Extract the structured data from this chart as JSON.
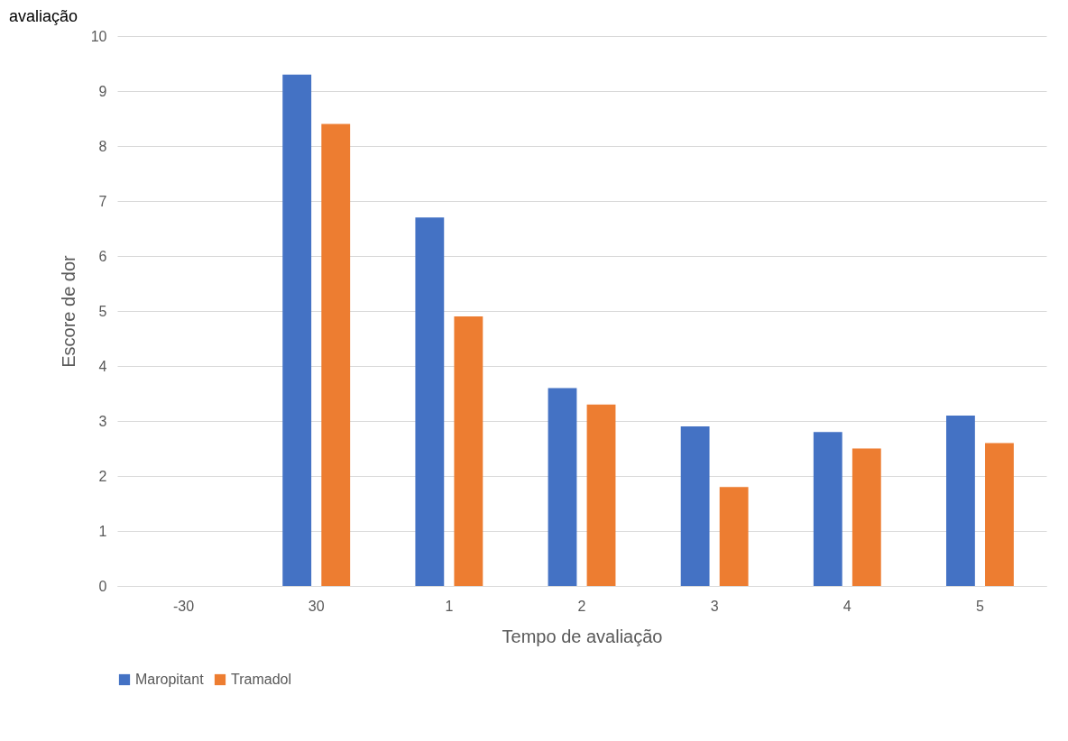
{
  "chart_data": {
    "type": "bar",
    "title": "avaliação",
    "xlabel": "Tempo de avaliação",
    "ylabel": "Escore de dor",
    "categories": [
      "-30",
      "30",
      "1",
      "2",
      "3",
      "4",
      "5"
    ],
    "series": [
      {
        "name": "Maropitant",
        "color": "#4472c4",
        "values": [
          null,
          9.3,
          6.7,
          3.6,
          2.9,
          2.8,
          3.1
        ]
      },
      {
        "name": "Tramadol",
        "color": "#ed7d31",
        "values": [
          null,
          8.4,
          4.9,
          3.3,
          1.8,
          2.5,
          2.6
        ]
      }
    ],
    "ylim": [
      0,
      10
    ],
    "yticks": [
      0,
      1,
      2,
      3,
      4,
      5,
      6,
      7,
      8,
      9,
      10
    ],
    "grid": "y",
    "legend": "bottom"
  }
}
